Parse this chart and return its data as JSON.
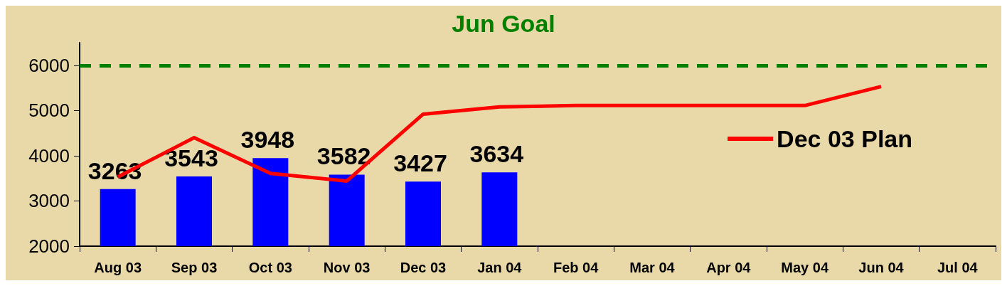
{
  "chart_data": {
    "type": "bar",
    "categories": [
      "Aug 03",
      "Sep 03",
      "Oct 03",
      "Nov 03",
      "Dec 03",
      "Jan 04",
      "Feb 04",
      "Mar 04",
      "Apr 04",
      "May 04",
      "Jun 04",
      "Jul 04"
    ],
    "series": [
      {
        "color": "#0000ff",
        "values": [
          3263,
          3543,
          3948,
          3582,
          3427,
          3634,
          null,
          null,
          null,
          null,
          null,
          null
        ],
        "value_labels": [
          "3263",
          "3543",
          "3948",
          "3582",
          "3427",
          "3634",
          null,
          null,
          null,
          null,
          null,
          null
        ]
      },
      {
        "type": "line",
        "name": "Dec 03 Plan",
        "color": "#ff0000",
        "values": [
          3530,
          4400,
          3610,
          3440,
          4920,
          5080,
          5110,
          5110,
          5110,
          5110,
          5530,
          null
        ]
      }
    ],
    "ref_lines": [
      {
        "axis": "y",
        "value": 6000,
        "label": "Jun Goal",
        "color": "#008000",
        "line_style": "dashed"
      }
    ],
    "ylim": [
      2000,
      6500
    ],
    "yticks": [
      {
        "value": 2000,
        "label": "2000"
      },
      {
        "value": 3000,
        "label": "3000"
      },
      {
        "value": 4000,
        "label": "4000"
      },
      {
        "value": 5000,
        "label": "5000"
      },
      {
        "value": 6000,
        "label": "6000"
      }
    ],
    "grid": false,
    "legend": "right",
    "marker": "none"
  }
}
